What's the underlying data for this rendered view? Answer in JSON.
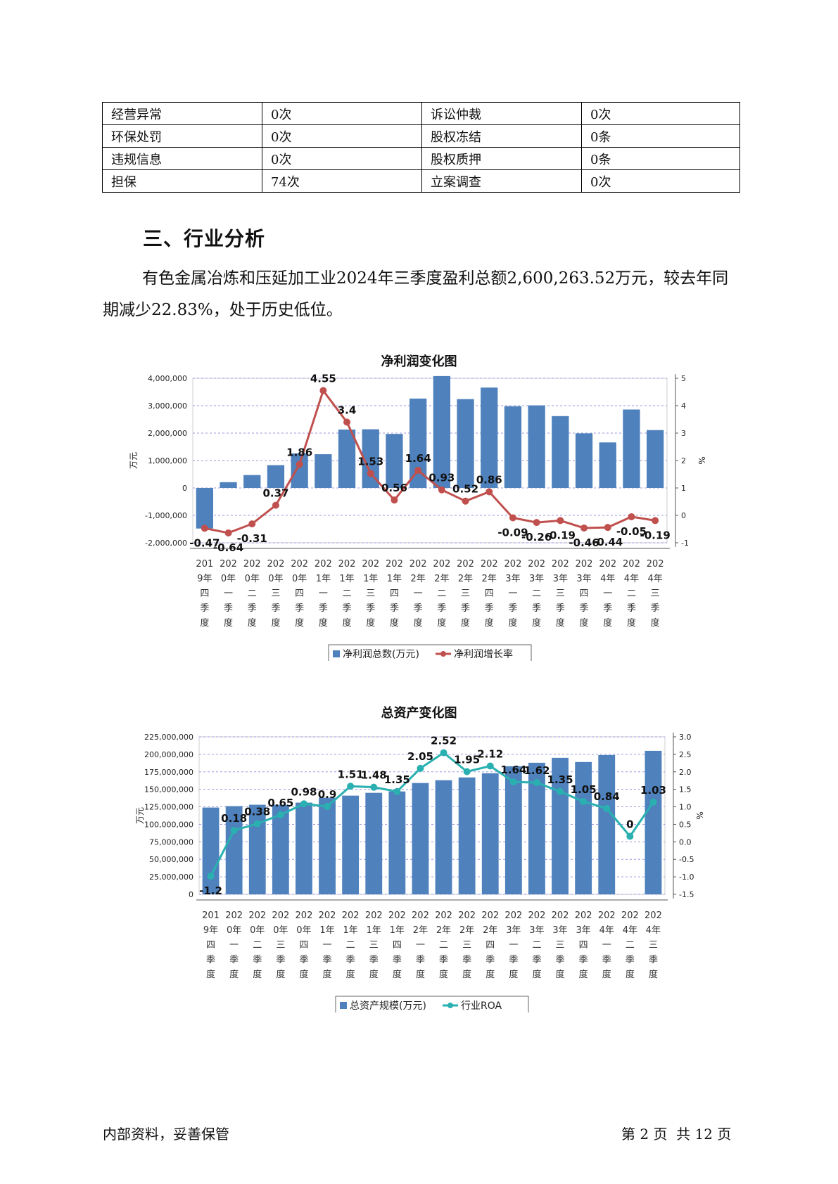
{
  "risk_table": {
    "rows": [
      [
        "经营异常",
        "0次",
        "诉讼仲裁",
        "0次"
      ],
      [
        "环保处罚",
        "0次",
        "股权冻结",
        "0条"
      ],
      [
        "违规信息",
        "0次",
        "股权质押",
        "0条"
      ],
      [
        "担保",
        "74次",
        "立案调查",
        "0次"
      ]
    ]
  },
  "section": {
    "heading": "三、行业分析",
    "paragraph": "有色金属冶炼和压延加工业2024年三季度盈利总额2,600,263.52万元，较去年同期减少22.83%，处于历史低位。"
  },
  "chart_data": [
    {
      "type": "bar+line",
      "title": "净利润变化图",
      "ylabel_left": "万元",
      "ylabel_right": "%",
      "ylim_left": [
        -2000000,
        4000000
      ],
      "yticks_left": [
        "4,000,000",
        "3,000,000",
        "2,000,000",
        "1,000,000",
        "0",
        "-1,000,000",
        "-2,000,000"
      ],
      "ylim_right": [
        -1,
        5
      ],
      "yticks_right": [
        "5",
        "4",
        "3",
        "2",
        "1",
        "0",
        "-1"
      ],
      "categories": [
        [
          "201",
          "9年",
          "四",
          "季",
          "度"
        ],
        [
          "202",
          "0年",
          "一",
          "季",
          "度"
        ],
        [
          "202",
          "0年",
          "二",
          "季",
          "度"
        ],
        [
          "202",
          "0年",
          "三",
          "季",
          "度"
        ],
        [
          "202",
          "0年",
          "四",
          "季",
          "度"
        ],
        [
          "202",
          "1年",
          "一",
          "季",
          "度"
        ],
        [
          "202",
          "1年",
          "二",
          "季",
          "度"
        ],
        [
          "202",
          "1年",
          "三",
          "季",
          "度"
        ],
        [
          "202",
          "1年",
          "四",
          "季",
          "度"
        ],
        [
          "202",
          "2年",
          "一",
          "季",
          "度"
        ],
        [
          "202",
          "2年",
          "二",
          "季",
          "度"
        ],
        [
          "202",
          "2年",
          "三",
          "季",
          "度"
        ],
        [
          "202",
          "2年",
          "四",
          "季",
          "度"
        ],
        [
          "202",
          "3年",
          "一",
          "季",
          "度"
        ],
        [
          "202",
          "3年",
          "二",
          "季",
          "度"
        ],
        [
          "202",
          "3年",
          "三",
          "季",
          "度"
        ],
        [
          "202",
          "3年",
          "四",
          "季",
          "度"
        ],
        [
          "202",
          "4年",
          "一",
          "季",
          "度"
        ],
        [
          "202",
          "4年",
          "二",
          "季",
          "度"
        ],
        [
          "202",
          "4年",
          "三",
          "季",
          "度"
        ]
      ],
      "bar_series": {
        "name": "净利润总数(万元)",
        "color": "#4f81bd",
        "values": [
          -1480000,
          210000,
          470000,
          830000,
          1260000,
          1230000,
          2130000,
          2140000,
          1970000,
          3260000,
          4080000,
          3240000,
          3660000,
          2980000,
          3010000,
          2620000,
          1990000,
          1660000,
          2860000,
          2110000
        ]
      },
      "line_series": {
        "name": "净利润增长率",
        "color": "#c0504d",
        "values": [
          -0.47,
          -0.64,
          -0.31,
          0.37,
          1.86,
          4.55,
          3.4,
          1.53,
          0.56,
          1.64,
          0.93,
          0.52,
          0.86,
          -0.09,
          -0.26,
          -0.19,
          -0.46,
          -0.44,
          -0.05,
          -0.19
        ],
        "labels": [
          "-0.47",
          "-0.64",
          "-0.31",
          "0.37",
          "1.86",
          "4.55",
          "3.4",
          "1.53",
          "0.56",
          "1.64",
          "0.93",
          "0.52",
          "0.86",
          "-0.09",
          "-0.26",
          "-0.19",
          "-0.46",
          "-0.44",
          "-0.05",
          "-0.19"
        ]
      },
      "legend": "bottom",
      "grid": true
    },
    {
      "type": "bar+line",
      "title": "总资产变化图",
      "ylabel_left": "万元",
      "ylabel_right": "%",
      "ylim_left": [
        0,
        225000000
      ],
      "yticks_left": [
        "225,000,000",
        "200,000,000",
        "175,000,000",
        "150,000,000",
        "125,000,000",
        "100,000,000",
        "75,000,000",
        "50,000,000",
        "25,000,000",
        "0"
      ],
      "ylim_right": [
        -1.75,
        3.0
      ],
      "yticks_right": [
        "3.0",
        "2.5",
        "2.0",
        "1.5",
        "1.0",
        "0.5",
        "0.0",
        "-0.5",
        "-1.0",
        "-1.5"
      ],
      "categories": [
        [
          "201",
          "9年",
          "四",
          "季",
          "度"
        ],
        [
          "202",
          "0年",
          "一",
          "季",
          "度"
        ],
        [
          "202",
          "0年",
          "二",
          "季",
          "度"
        ],
        [
          "202",
          "0年",
          "三",
          "季",
          "度"
        ],
        [
          "202",
          "0年",
          "四",
          "季",
          "度"
        ],
        [
          "202",
          "1年",
          "一",
          "季",
          "度"
        ],
        [
          "202",
          "1年",
          "二",
          "季",
          "度"
        ],
        [
          "202",
          "1年",
          "三",
          "季",
          "度"
        ],
        [
          "202",
          "1年",
          "四",
          "季",
          "度"
        ],
        [
          "202",
          "2年",
          "一",
          "季",
          "度"
        ],
        [
          "202",
          "2年",
          "二",
          "季",
          "度"
        ],
        [
          "202",
          "2年",
          "三",
          "季",
          "度"
        ],
        [
          "202",
          "2年",
          "四",
          "季",
          "度"
        ],
        [
          "202",
          "3年",
          "一",
          "季",
          "度"
        ],
        [
          "202",
          "3年",
          "二",
          "季",
          "度"
        ],
        [
          "202",
          "3年",
          "三",
          "季",
          "度"
        ],
        [
          "202",
          "3年",
          "四",
          "季",
          "度"
        ],
        [
          "202",
          "4年",
          "一",
          "季",
          "度"
        ],
        [
          "202",
          "4年",
          "二",
          "季",
          "度"
        ],
        [
          "202",
          "4年",
          "三",
          "季",
          "度"
        ]
      ],
      "bar_series": {
        "name": "总资产规模(万元)",
        "color": "#4f81bd",
        "values": [
          124000000,
          126000000,
          128000000,
          128000000,
          131000000,
          138000000,
          141000000,
          145000000,
          147000000,
          159000000,
          163000000,
          167000000,
          173000000,
          183000000,
          188000000,
          195000000,
          189000000,
          199000000,
          null,
          205000000
        ]
      },
      "line_series": {
        "name": "行业ROA",
        "color": "#2ab0b0",
        "values": [
          -1.2,
          0.18,
          0.38,
          0.65,
          0.98,
          0.9,
          1.51,
          1.48,
          1.35,
          2.05,
          2.52,
          1.95,
          2.12,
          1.64,
          1.62,
          1.35,
          1.05,
          0.84,
          0,
          1.03
        ],
        "labels": [
          "-1.2",
          "0.18",
          "0.38",
          "0.65",
          "0.98",
          "0.9",
          "1.51",
          "1.48",
          "1.35",
          "2.05",
          "2.52",
          "1.95",
          "2.12",
          "1.64",
          "1.62",
          "1.35",
          "1.05",
          "0.84",
          "0",
          "1.03"
        ]
      },
      "legend": "bottom",
      "grid": true
    }
  ],
  "footer": {
    "left": "内部资料，妥善保管",
    "right": "第 2 页  共 12 页"
  }
}
